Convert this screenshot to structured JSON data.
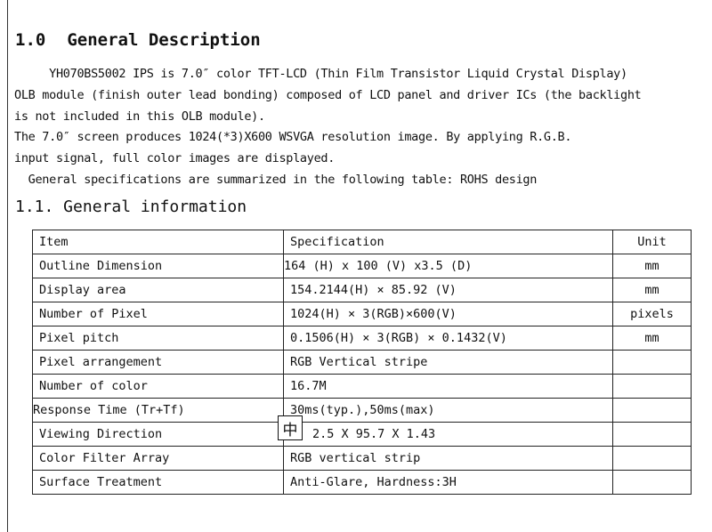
{
  "heading": {
    "number": "1.0",
    "title": "General Description"
  },
  "paragraph": [
    "     YH070BS5002 IPS is 7.0″ color TFT-LCD (Thin Film Transistor Liquid Crystal Display)",
    "OLB module (finish outer lead bonding) composed of LCD panel and driver ICs (the backlight",
    "is not included in this OLB module).",
    "The 7.0″ screen produces 1024(*3)X600 WSVGA resolution image. By applying R.G.B.",
    "input signal, full color images are displayed.",
    "  General specifications are summarized in the following table: ROHS design"
  ],
  "subheading": "1.1. General information",
  "table": {
    "header": [
      "Item",
      "Specification",
      "Unit"
    ],
    "rows": [
      [
        "Outline Dimension",
        "164  (H) x 100 (V) x3.5 (D)",
        "mm"
      ],
      [
        "Display area",
        "154.2144(H) × 85.92 (V)",
        "mm"
      ],
      [
        "Number of Pixel",
        "1024(H) × 3(RGB)×600(V)",
        "pixels"
      ],
      [
        "Pixel pitch",
        "0.1506(H) × 3(RGB) × 0.1432(V)",
        "mm"
      ],
      [
        "Pixel arrangement",
        "RGB Vertical stripe",
        ""
      ],
      [
        "Number of color",
        "16.7M",
        ""
      ],
      [
        "Response Time (Tr+Tf)",
        "30ms(typ.),50ms(max)",
        ""
      ],
      [
        "Viewing Direction",
        "2.5 X 95.7 X 1.43",
        ""
      ],
      [
        "Color Filter Array",
        "RGB vertical strip",
        ""
      ],
      [
        "Surface Treatment",
        "Anti-Glare, Hardness:3H",
        ""
      ]
    ]
  },
  "ime_indicator": "中"
}
